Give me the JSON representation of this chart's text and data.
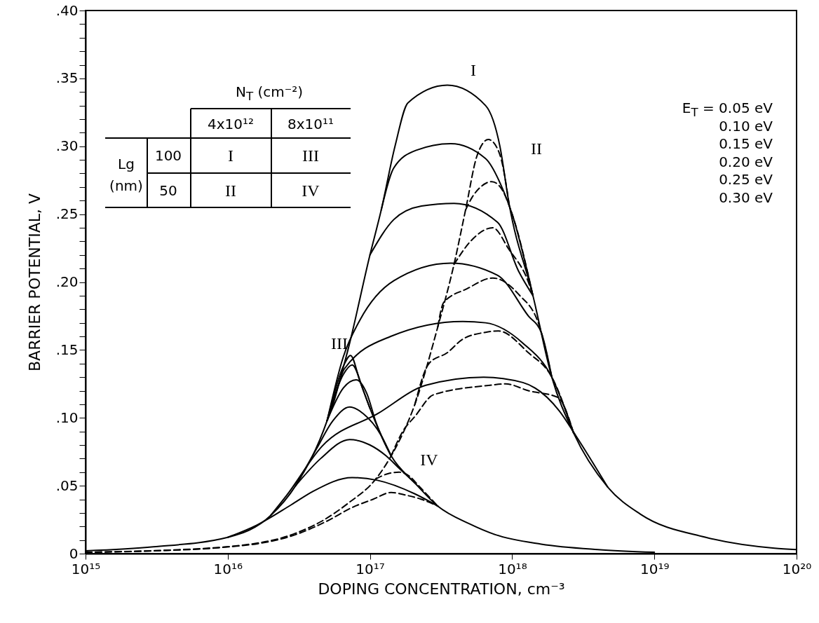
{
  "chart_data": {
    "type": "line",
    "xlabel": "DOPING CONCENTRATION,  cm⁻³",
    "ylabel": "BARRIER POTENTIAL,  V",
    "log": "x",
    "grid": false,
    "xlim": [
      1000000000000000.0,
      1e+20
    ],
    "xticks": [
      {
        "value": 1000000000000000.0,
        "label": "10¹⁵"
      },
      {
        "value": 1e+16,
        "label": "10¹⁶"
      },
      {
        "value": 1e+17,
        "label": "10¹⁷"
      },
      {
        "value": 1e+18,
        "label": "10¹⁸"
      },
      {
        "value": 1e+19,
        "label": "10¹⁹"
      },
      {
        "value": 1e+20,
        "label": "10²⁰"
      }
    ],
    "ylim": [
      0,
      0.4
    ],
    "yticks": [
      0,
      {
        "value": 0.01,
        "label": null
      },
      {
        "value": 0.02,
        "label": null
      },
      {
        "value": 0.03,
        "label": null
      },
      {
        "value": 0.04,
        "label": null
      },
      {
        "value": 0.05,
        "label": ".05"
      },
      {
        "value": 0.06,
        "label": null
      },
      {
        "value": 0.07,
        "label": null
      },
      {
        "value": 0.08,
        "label": null
      },
      {
        "value": 0.09,
        "label": null
      },
      {
        "value": 0.1,
        "label": ".10"
      },
      {
        "value": 0.11,
        "label": null
      },
      {
        "value": 0.12,
        "label": null
      },
      {
        "value": 0.13,
        "label": null
      },
      {
        "value": 0.14,
        "label": null
      },
      {
        "value": 0.15,
        "label": ".15"
      },
      {
        "value": 0.16,
        "label": null
      },
      {
        "value": 0.17,
        "label": null
      },
      {
        "value": 0.18,
        "label": null
      },
      {
        "value": 0.19,
        "label": null
      },
      {
        "value": 0.2,
        "label": ".20"
      },
      {
        "value": 0.21,
        "label": null
      },
      {
        "value": 0.22,
        "label": null
      },
      {
        "value": 0.23,
        "label": null
      },
      {
        "value": 0.24,
        "label": null
      },
      {
        "value": 0.25,
        "label": ".25"
      },
      {
        "value": 0.26,
        "label": null
      },
      {
        "value": 0.27,
        "label": null
      },
      {
        "value": 0.28,
        "label": null
      },
      {
        "value": 0.29,
        "label": null
      },
      {
        "value": 0.3,
        "label": ".30"
      },
      {
        "value": 0.31,
        "label": null
      },
      {
        "value": 0.32,
        "label": null
      },
      {
        "value": 0.33,
        "label": null
      },
      {
        "value": 0.34,
        "label": null
      },
      {
        "value": 0.35,
        "label": ".35"
      },
      {
        "value": 0.36,
        "label": null
      },
      {
        "value": 0.37,
        "label": null
      },
      {
        "value": 0.38,
        "label": null
      },
      {
        "value": 0.39,
        "label": null
      },
      {
        "value": 0.4,
        "label": ".40"
      }
    ],
    "annotations": [
      "N$_{T}$ (cm⁻²)",
      "4x10¹²",
      "8x10¹¹",
      "Lg",
      "(nm)",
      "100",
      "I",
      "III",
      "50",
      "II",
      "IV",
      "E$_{T}$ = 0.05 eV",
      "0.10 eV",
      "0.15 eV",
      "0.20 eV",
      "0.25 eV",
      "0.30 eV",
      "I",
      "II",
      "III",
      "IV"
    ],
    "series": [
      {
        "color": "#000000",
        "line_style": "solid",
        "x": [
          1000000000000000.0,
          3000000000000000.0,
          1e+16,
          2e+16,
          3e+16,
          5e+16,
          7e+16,
          1e+17,
          1.2e+17,
          1.5e+17,
          1.85e+17,
          3.5e+17,
          6.5e+17,
          8.2e+17,
          9.5e+17,
          1.4e+18,
          1.9e+18,
          2.7e+18,
          4.7e+18,
          8e+18,
          2.3e+19,
          7e+19,
          1e+20
        ],
        "values": [
          0.002,
          0.005,
          0.012,
          0.028,
          0.05,
          0.098,
          0.15,
          0.22,
          0.253,
          0.3,
          0.332,
          0.345,
          0.33,
          0.3,
          0.258,
          0.19,
          0.13,
          0.089,
          0.049,
          0.029,
          0.012,
          0.004,
          0.003
        ]
      },
      {
        "color": "#000000",
        "line_style": "solid",
        "x": [
          1.2e+17,
          1.47e+17,
          2.1e+17,
          3.7e+17,
          6.5e+17,
          8.7e+17,
          1e+18,
          1.4e+18
        ],
        "values": [
          0.253,
          0.284,
          0.297,
          0.302,
          0.291,
          0.267,
          0.25,
          0.19
        ]
      },
      {
        "color": "#000000",
        "line_style": "solid",
        "x": [
          1e+17,
          1.47e+17,
          2.3e+17,
          3.9e+17,
          7.9e+17,
          1.11e+18,
          1.4e+18
        ],
        "values": [
          0.22,
          0.246,
          0.256,
          0.258,
          0.244,
          0.208,
          0.19
        ]
      },
      {
        "color": "#000000",
        "line_style": "solid",
        "x": [
          5e+16,
          6.5e+16,
          8.5e+16,
          1.47e+17,
          3.7e+17,
          7.9e+17,
          1.3e+18,
          1.6e+18,
          1.9e+18
        ],
        "values": [
          0.098,
          0.145,
          0.172,
          0.201,
          0.214,
          0.205,
          0.175,
          0.163,
          0.13
        ]
      },
      {
        "color": "#000000",
        "line_style": "solid",
        "x": [
          5e+16,
          5.5e+16,
          6.6e+16,
          1.4e+17,
          4.5e+17,
          6.5e+17,
          1.19e+18,
          1.9e+18,
          2.7e+18
        ],
        "values": [
          0.098,
          0.11,
          0.136,
          0.16,
          0.171,
          0.17,
          0.155,
          0.13,
          0.089
        ]
      },
      {
        "color": "#000000",
        "line_style": "solid",
        "x": [
          2e+16,
          2.6e+16,
          4.6e+16,
          1.13e+17,
          2.47e+17,
          6.3e+17,
          1.19e+18,
          2.15e+18,
          2.8e+18,
          4.7e+18
        ],
        "values": [
          0.028,
          0.043,
          0.079,
          0.103,
          0.124,
          0.13,
          0.126,
          0.105,
          0.087,
          0.049
        ]
      },
      {
        "color": "#000000",
        "line_style": "solid",
        "x": [
          5e+16,
          6.5e+16,
          7.3e+16,
          8.5e+16,
          1e+17,
          1.41e+17,
          2.07e+17,
          3e+17,
          5e+17,
          7.6e+17,
          1.6e+18,
          4e+18,
          1e+19
        ],
        "values": [
          0.098,
          0.138,
          0.146,
          0.127,
          0.107,
          0.072,
          0.052,
          0.035,
          0.022,
          0.014,
          0.007,
          0.003,
          0.001
        ]
      },
      {
        "color": "#000000",
        "line_style": "solid",
        "x": [
          5e+16,
          6.5e+16,
          7.5e+16,
          9e+16,
          1e+17
        ],
        "values": [
          0.098,
          0.132,
          0.139,
          0.12,
          0.107
        ]
      },
      {
        "color": "#000000",
        "line_style": "solid",
        "x": [
          5e+16,
          6.5e+16,
          8e+16,
          9.5e+16,
          1.1e+17,
          1.41e+17
        ],
        "values": [
          0.098,
          0.122,
          0.128,
          0.118,
          0.097,
          0.072
        ]
      },
      {
        "color": "#000000",
        "line_style": "solid",
        "x": [
          3e+16,
          4.2e+16,
          5.5e+16,
          7.2e+16,
          9e+16,
          1.2e+17,
          1.41e+17
        ],
        "values": [
          0.05,
          0.077,
          0.098,
          0.108,
          0.103,
          0.087,
          0.072
        ]
      },
      {
        "color": "#000000",
        "line_style": "solid",
        "x": [
          3e+16,
          4.5e+16,
          7.2e+16,
          1e+17,
          1.3e+17,
          1.6e+17,
          2.07e+17
        ],
        "values": [
          0.05,
          0.07,
          0.084,
          0.08,
          0.072,
          0.063,
          0.052
        ]
      },
      {
        "color": "#000000",
        "line_style": "solid",
        "x": [
          1e+16,
          1.6e+16,
          2.8e+16,
          4e+16,
          7.5e+16,
          1.13e+17,
          2.07e+17,
          3e+17
        ],
        "values": [
          0.012,
          0.021,
          0.036,
          0.046,
          0.056,
          0.054,
          0.044,
          0.035
        ]
      },
      {
        "color": "#000000",
        "line_style": "dashed",
        "x": [
          1000000000000000.0,
          3000000000000000.0,
          1e+16,
          3e+16,
          4.6e+16,
          7e+16,
          1.1e+17,
          1.41e+17,
          2.07e+17,
          3e+17,
          3.9e+17,
          4.7e+17,
          5.66e+17,
          6.8e+17,
          7.9e+17,
          8.4e+17,
          9.5e+17
        ],
        "values": [
          0.001,
          0.002,
          0.005,
          0.015,
          0.024,
          0.037,
          0.055,
          0.072,
          0.11,
          0.167,
          0.213,
          0.253,
          0.293,
          0.305,
          0.298,
          0.29,
          0.258
        ]
      },
      {
        "color": "#000000",
        "line_style": "dashed",
        "x": [
          4.7e+17,
          5.2e+17,
          6e+17,
          7.2e+17,
          8.5e+17,
          1e+18,
          1.4e+18
        ],
        "values": [
          0.253,
          0.262,
          0.27,
          0.274,
          0.268,
          0.25,
          0.19
        ]
      },
      {
        "color": "#000000",
        "line_style": "dashed",
        "x": [
          3.9e+17,
          5.2e+17,
          7.3e+17,
          9.5e+17,
          1.3e+18,
          1.4e+18
        ],
        "values": [
          0.213,
          0.231,
          0.24,
          0.224,
          0.2,
          0.19
        ]
      },
      {
        "color": "#000000",
        "line_style": "dashed",
        "x": [
          3e+17,
          3.3e+17,
          4.8e+17,
          7.3e+17,
          1.11e+18,
          1.55e+18,
          1.9e+18
        ],
        "values": [
          0.167,
          0.185,
          0.195,
          0.203,
          0.191,
          0.168,
          0.13
        ]
      },
      {
        "color": "#000000",
        "line_style": "dashed",
        "x": [
          2.07e+17,
          2.6e+17,
          3.5e+17,
          4.5e+17,
          6.5e+17,
          8e+17,
          1.3e+18,
          1.9e+18,
          2.7e+18
        ],
        "values": [
          0.11,
          0.14,
          0.148,
          0.158,
          0.163,
          0.164,
          0.148,
          0.13,
          0.089
        ]
      },
      {
        "color": "#000000",
        "line_style": "dashed",
        "x": [
          1.41e+17,
          1.7e+17,
          2.07e+17,
          2.8e+17,
          7e+17,
          9e+17,
          1.3e+18,
          2.1e+18,
          2.7e+18
        ],
        "values": [
          0.072,
          0.09,
          0.101,
          0.117,
          0.124,
          0.125,
          0.12,
          0.115,
          0.089
        ]
      },
      {
        "color": "#000000",
        "line_style": "dashed",
        "x": [
          1.1e+17,
          1.35e+17,
          1.6e+17,
          1.9e+17,
          2.2e+17,
          3e+17
        ],
        "values": [
          0.055,
          0.059,
          0.06,
          0.057,
          0.05,
          0.035
        ]
      },
      {
        "color": "#000000",
        "line_style": "dashed",
        "x": [
          1000000000000000.0,
          1e+16,
          3e+16,
          5e+16,
          7.5e+16,
          1.05e+17,
          1.41e+17,
          1.8e+17,
          2.3e+17,
          3e+17
        ],
        "values": [
          0.001,
          0.005,
          0.014,
          0.024,
          0.034,
          0.04,
          0.045,
          0.043,
          0.04,
          0.035
        ]
      }
    ]
  }
}
